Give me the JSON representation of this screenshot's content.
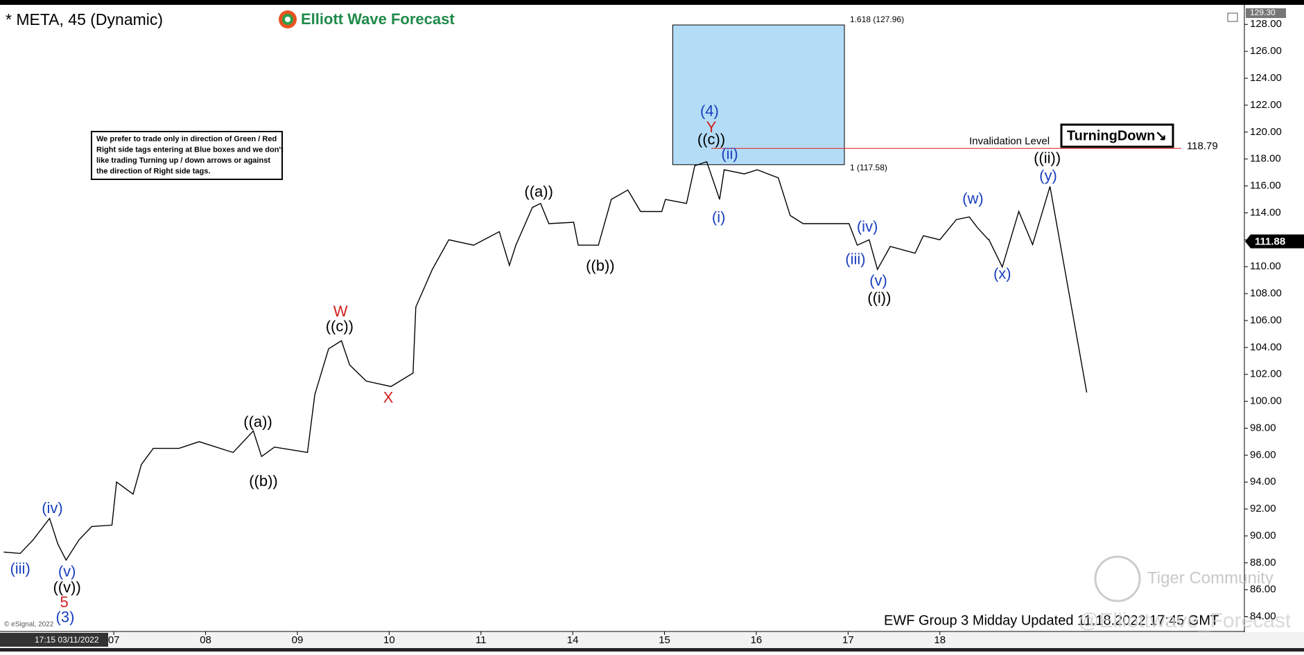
{
  "chart_data": {
    "type": "line",
    "title": "* META, 45 (Dynamic)",
    "brand": "Elliott Wave Forecast",
    "note": [
      "We prefer to trade only in direction of Green / Red",
      "Right side tags entering at Blue boxes and we don't",
      "like trading Turning up / down arrows or against",
      "the direction of Right side tags."
    ],
    "tag": "TurningDown↘",
    "footer": "EWF Group 3 Midday Updated 11.18.2022 17:45 GMT",
    "copyright": "© eSignal, 2022",
    "timestamp": "17:15 03/11/2022",
    "watermark": [
      "Tiger Community",
      "@Elliottwave_Forecast"
    ],
    "xlim": [
      -1.24,
      12.28
    ],
    "ylim": [
      82.9,
      129.3
    ],
    "xticks": [
      {
        "value": 0,
        "label": "07"
      },
      {
        "value": 1,
        "label": "08"
      },
      {
        "value": 2,
        "label": "09"
      },
      {
        "value": 3,
        "label": "10"
      },
      {
        "value": 4,
        "label": "11"
      },
      {
        "value": 5,
        "label": "14"
      },
      {
        "value": 6,
        "label": "15"
      },
      {
        "value": 7,
        "label": "16"
      },
      {
        "value": 8,
        "label": "17"
      },
      {
        "value": 9,
        "label": "18"
      }
    ],
    "yticks": [
      {
        "value": 84,
        "label": "84.00"
      },
      {
        "value": 86,
        "label": "86.00"
      },
      {
        "value": 88,
        "label": "88.00"
      },
      {
        "value": 90,
        "label": "90.00"
      },
      {
        "value": 92,
        "label": "92.00"
      },
      {
        "value": 94,
        "label": "94.00"
      },
      {
        "value": 96,
        "label": "96.00"
      },
      {
        "value": 98,
        "label": "98.00"
      },
      {
        "value": 100,
        "label": "100.00"
      },
      {
        "value": 102,
        "label": "102.00"
      },
      {
        "value": 104,
        "label": "104.00"
      },
      {
        "value": 106,
        "label": "106.00"
      },
      {
        "value": 108,
        "label": "108.00"
      },
      {
        "value": 110,
        "label": "110.00"
      },
      {
        "value": 112,
        "label": "112.00"
      },
      {
        "value": 114,
        "label": "114.00"
      },
      {
        "value": 116,
        "label": "116.00"
      },
      {
        "value": 118,
        "label": "118.00"
      },
      {
        "value": 120,
        "label": "120.00"
      },
      {
        "value": 122,
        "label": "122.00"
      },
      {
        "value": 124,
        "label": "124.00"
      },
      {
        "value": 126,
        "label": "126.00"
      },
      {
        "value": 128,
        "label": "128.00"
      }
    ],
    "axis_top": {
      "value": 129.3,
      "label": "129.30"
    },
    "last_price": 111.88,
    "series": [
      {
        "color": "#000000",
        "x": [
          -1.2,
          -1.02,
          -0.88,
          -0.7,
          -0.61,
          -0.52,
          -0.38,
          -0.24,
          -0.02,
          0.03,
          0.21,
          0.3,
          0.43,
          0.71,
          0.93,
          1.3,
          1.52,
          1.61,
          1.75,
          2.11,
          2.19,
          2.34,
          2.48,
          2.57,
          2.75,
          3.02,
          3.26,
          3.29,
          3.47,
          3.65,
          3.92,
          4.2,
          4.31,
          4.38,
          4.56,
          4.65,
          4.74,
          5.01,
          5.06,
          5.28,
          5.42,
          5.6,
          5.74,
          5.97,
          6.01,
          6.24,
          6.33,
          6.46,
          6.6,
          6.65,
          6.87,
          7.01,
          7.24,
          7.37,
          7.51,
          8.01,
          8.1,
          8.23,
          8.32,
          8.46,
          8.73,
          8.82,
          9.0,
          9.18,
          9.32,
          9.41,
          9.53
        ],
        "values": [
          88.8,
          88.7,
          89.7,
          91.3,
          89.4,
          88.2,
          89.7,
          90.7,
          90.8,
          94.0,
          93.1,
          95.3,
          96.5,
          96.5,
          97.0,
          96.2,
          97.8,
          95.9,
          96.6,
          96.2,
          100.5,
          103.9,
          104.5,
          102.7,
          101.5,
          101.1,
          102.1,
          107.0,
          109.8,
          112.0,
          111.6,
          112.6,
          110.1,
          111.6,
          114.4,
          114.7,
          113.2,
          113.3,
          111.6,
          111.6,
          115.0,
          115.7,
          114.1,
          114.1,
          115.0,
          114.7,
          117.5,
          117.8,
          115.0,
          117.2,
          116.9,
          117.2,
          116.6,
          113.8,
          113.2,
          113.2,
          111.6,
          112.0,
          109.8,
          111.5,
          111.0,
          112.3,
          112.0,
          113.5,
          113.7,
          112.9,
          112.0
        ]
      },
      {
        "color": "#000000",
        "x": [
          9.53,
          9.68,
          9.86,
          10.01,
          10.2,
          10.6
        ],
        "values": [
          112.07,
          109.98,
          114.11,
          111.64,
          115.96,
          100.65
        ]
      }
    ],
    "fib_box": {
      "x": [
        6.09,
        7.96
      ],
      "top": 127.96,
      "bottom": 117.58,
      "top_label": "1.618 (127.96)",
      "bottom_label": "1 (117.58)",
      "color": "#b3dcf7"
    },
    "invalidation": {
      "label": "Invalidation Level",
      "value": 118.79,
      "x": [
        6.51,
        11.63
      ],
      "color": "#e03030"
    },
    "annotations": [
      {
        "text": "(iii)",
        "x": -1.02,
        "y": 87.5,
        "color": "#1a3fbf"
      },
      {
        "text": "(iv)",
        "x": -0.67,
        "y": 92.0,
        "color": "#1a3fbf"
      },
      {
        "text": "(v)",
        "x": -0.51,
        "y": 87.3,
        "color": "#1a3fbf"
      },
      {
        "text": "((v))",
        "x": -0.51,
        "y": 86.1,
        "color": "#000000"
      },
      {
        "text": "5",
        "x": -0.54,
        "y": 85.0,
        "color": "#d0201c"
      },
      {
        "text": "(3)",
        "x": -0.53,
        "y": 83.9,
        "color": "#1a3fbf"
      },
      {
        "text": "((a))",
        "x": 1.57,
        "y": 98.4,
        "color": "#000000"
      },
      {
        "text": "((b))",
        "x": 1.63,
        "y": 94.0,
        "color": "#000000"
      },
      {
        "text": "W",
        "x": 2.47,
        "y": 106.6,
        "color": "#d0201c"
      },
      {
        "text": "((c))",
        "x": 2.46,
        "y": 105.5,
        "color": "#000000"
      },
      {
        "text": "X",
        "x": 2.99,
        "y": 100.2,
        "color": "#d0201c"
      },
      {
        "text": "((a))",
        "x": 4.63,
        "y": 115.5,
        "color": "#000000"
      },
      {
        "text": "((b))",
        "x": 5.3,
        "y": 110.0,
        "color": "#000000"
      },
      {
        "text": "(4)",
        "x": 6.49,
        "y": 121.5,
        "color": "#1a3fbf"
      },
      {
        "text": "Y",
        "x": 6.51,
        "y": 120.3,
        "color": "#d0201c"
      },
      {
        "text": "((c))",
        "x": 6.51,
        "y": 119.4,
        "color": "#000000"
      },
      {
        "text": "(ii)",
        "x": 6.71,
        "y": 118.3,
        "color": "#1a3fbf"
      },
      {
        "text": "(i)",
        "x": 6.59,
        "y": 113.6,
        "color": "#1a3fbf"
      },
      {
        "text": "(iv)",
        "x": 8.21,
        "y": 112.9,
        "color": "#1a3fbf"
      },
      {
        "text": "(iii)",
        "x": 8.08,
        "y": 110.5,
        "color": "#1a3fbf"
      },
      {
        "text": "(v)",
        "x": 8.33,
        "y": 108.9,
        "color": "#1a3fbf"
      },
      {
        "text": "((i))",
        "x": 8.34,
        "y": 107.6,
        "color": "#000000"
      },
      {
        "text": "(w)",
        "x": 9.36,
        "y": 115.0,
        "color": "#1a3fbf"
      },
      {
        "text": "(x)",
        "x": 9.68,
        "y": 109.4,
        "color": "#1a3fbf"
      },
      {
        "text": "((ii))",
        "x": 10.17,
        "y": 118.0,
        "color": "#000000"
      },
      {
        "text": "(y)",
        "x": 10.18,
        "y": 116.7,
        "color": "#1a3fbf"
      }
    ]
  }
}
